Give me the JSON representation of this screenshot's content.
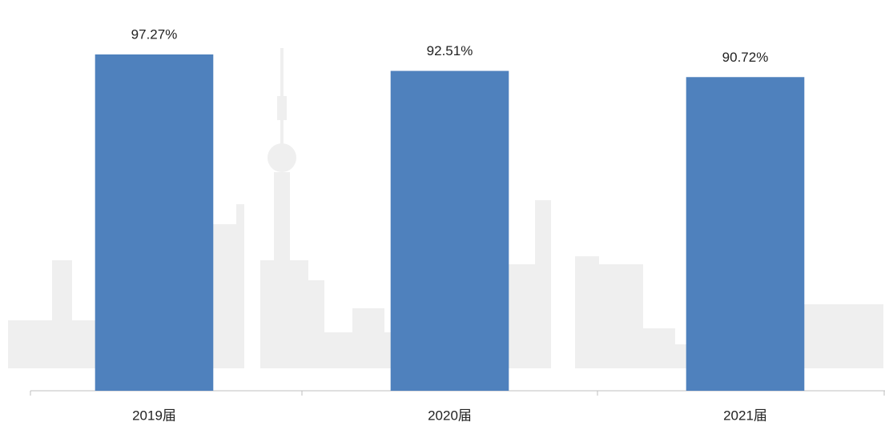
{
  "chart_data": {
    "type": "bar",
    "categories": [
      "2019届",
      "2020届",
      "2021届"
    ],
    "values": [
      97.27,
      92.51,
      90.72
    ],
    "value_labels": [
      "97.27%",
      "92.51%",
      "90.72%"
    ],
    "color": "#4f81bd",
    "ylim": [
      0,
      100
    ]
  }
}
